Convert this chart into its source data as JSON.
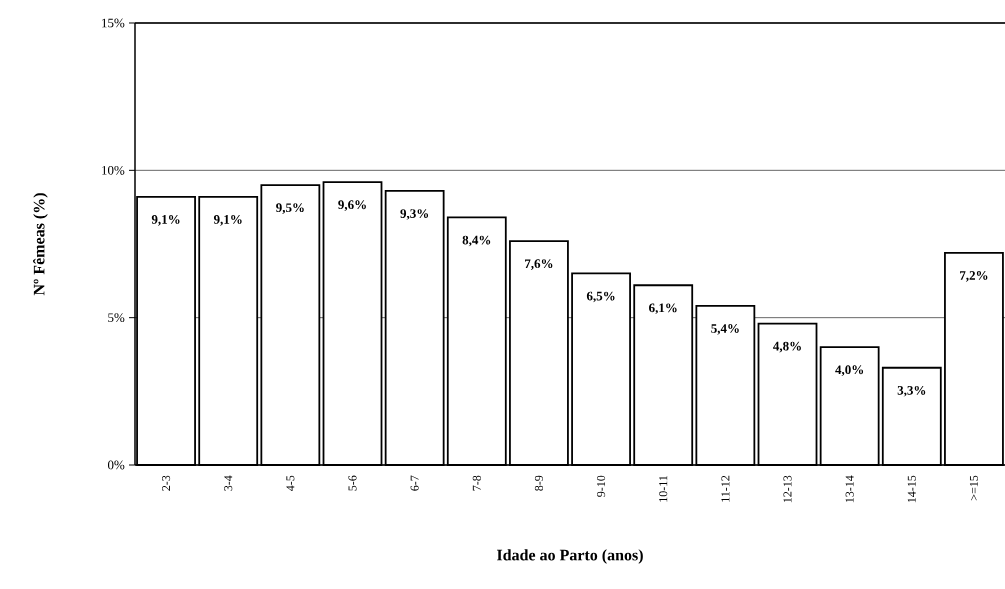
{
  "chart_data": {
    "type": "bar",
    "xlabel": "Idade ao Parto (anos)",
    "ylabel": "Nº Fêmeas (%)",
    "categories": [
      "2-3",
      "3-4",
      "4-5",
      "5-6",
      "6-7",
      "7-8",
      "8-9",
      "9-10",
      "10-11",
      "11-12",
      "12-13",
      "13-14",
      "14-15",
      ">=15"
    ],
    "values": [
      9.1,
      9.1,
      9.5,
      9.6,
      9.3,
      8.4,
      7.6,
      6.5,
      6.1,
      5.4,
      4.8,
      4.0,
      3.3,
      7.2
    ],
    "value_labels": [
      "9,1%",
      "9,1%",
      "9,5%",
      "9,6%",
      "9,3%",
      "8,4%",
      "7,6%",
      "6,5%",
      "6,1%",
      "5,4%",
      "4,8%",
      "4,0%",
      "3,3%",
      "7,2%"
    ],
    "color": "#ffffff",
    "ylim": [
      0,
      15
    ],
    "yticks": [
      {
        "value": 0,
        "label": "0%"
      },
      {
        "value": 5,
        "label": "5%"
      },
      {
        "value": 10,
        "label": "10%"
      },
      {
        "value": 15,
        "label": "15%"
      }
    ],
    "grid": "y"
  }
}
